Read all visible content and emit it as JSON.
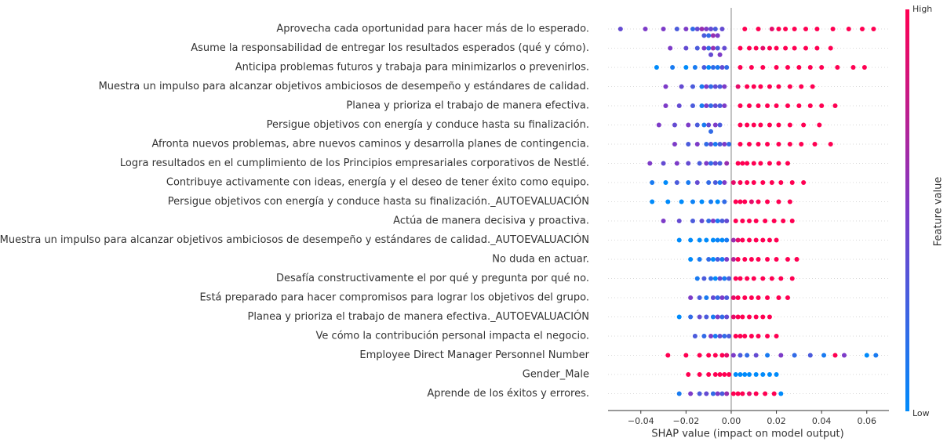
{
  "chart_data": {
    "type": "beeswarm",
    "xlabel": "SHAP value (impact on model output)",
    "xlim": [
      -0.0545,
      0.0698
    ],
    "xticks": [
      {
        "value": -0.04,
        "label": "−0.04"
      },
      {
        "value": -0.02,
        "label": "−0.02"
      },
      {
        "value": 0,
        "label": "0.00"
      },
      0.02,
      0.04,
      0.06
    ],
    "colorbar": {
      "label": "Feature value",
      "high": "High",
      "low": "Low",
      "colors": [
        "#008bfb",
        "#7d3bc8",
        "#ff0052"
      ]
    },
    "series": [
      {
        "name": "Aprovecha cada oportunidad para hacer más de lo esperado.",
        "values": [
          -0.049,
          -0.038,
          -0.03,
          -0.024,
          -0.02,
          -0.017,
          -0.015,
          -0.013,
          -0.012,
          -0.011,
          -0.01,
          -0.009,
          -0.008,
          -0.007,
          -0.006,
          -0.004,
          0.006,
          0.012,
          0.018,
          0.021,
          0.024,
          0.028,
          0.033,
          0.038,
          0.045,
          0.052,
          0.058,
          0.063
        ],
        "feature_values": [
          0.4,
          0.5,
          0.5,
          0.3,
          0.5,
          0.2,
          0.4,
          0.6,
          0.3,
          0.5,
          0.2,
          0.4,
          0.6,
          0.3,
          0.5,
          0.4,
          1,
          1,
          0.9,
          1,
          1,
          1,
          1,
          1,
          1,
          1,
          1,
          1
        ]
      },
      {
        "name": "Asume la responsabilidad de entregar los resultados esperados (qué y cómo).",
        "values": [
          -0.027,
          -0.02,
          -0.015,
          -0.012,
          -0.01,
          -0.009,
          -0.008,
          -0.006,
          -0.005,
          -0.003,
          0.004,
          0.008,
          0.011,
          0.014,
          0.017,
          0.02,
          0.024,
          0.028,
          0.033,
          0.038,
          0.044
        ],
        "feature_values": [
          0.5,
          0.4,
          0.3,
          0.5,
          0.2,
          0.4,
          0.6,
          0.3,
          0.5,
          0.4,
          1,
          1,
          1,
          0.9,
          1,
          1,
          1,
          1,
          1,
          1,
          1
        ]
      },
      {
        "name": "Anticipa problemas futuros y trabaja para minimizarlos o prevenirlos.",
        "values": [
          -0.033,
          -0.026,
          -0.02,
          -0.016,
          -0.012,
          -0.01,
          -0.008,
          -0.006,
          -0.004,
          -0.002,
          0.004,
          0.009,
          0.014,
          0.02,
          0.025,
          0.03,
          0.035,
          0.04,
          0.047,
          0.054,
          0.059
        ],
        "feature_values": [
          0,
          0.1,
          0,
          0.1,
          0.3,
          0,
          0.2,
          0.1,
          0.4,
          0.2,
          1,
          1,
          1,
          1,
          1,
          1,
          1,
          1,
          1,
          1,
          1
        ]
      },
      {
        "name": "Muestra un impulso para alcanzar objetivos ambiciosos de desempeño y estándares de calidad.",
        "values": [
          -0.029,
          -0.022,
          -0.017,
          -0.013,
          -0.011,
          -0.009,
          -0.007,
          -0.005,
          -0.003,
          0.003,
          0.007,
          0.01,
          0.013,
          0.017,
          0.021,
          0.026,
          0.031,
          0.036
        ],
        "feature_values": [
          0.5,
          0.4,
          0.3,
          0.1,
          0.5,
          0.2,
          0.4,
          0.3,
          0.5,
          0.9,
          1,
          1,
          1,
          1,
          1,
          1,
          1,
          1
        ]
      },
      {
        "name": "Planea y prioriza el trabajo de manera efectiva.",
        "values": [
          -0.029,
          -0.023,
          -0.017,
          -0.013,
          -0.011,
          -0.009,
          -0.007,
          -0.005,
          -0.003,
          0.004,
          0.008,
          0.012,
          0.016,
          0.02,
          0.025,
          0.03,
          0.035,
          0.04,
          0.046
        ],
        "feature_values": [
          0.5,
          0.4,
          0.3,
          0.1,
          0.5,
          0.2,
          0.4,
          0.3,
          0.5,
          1,
          1,
          1,
          1,
          1,
          1,
          1,
          1,
          1,
          1
        ]
      },
      {
        "name": "Persigue objetivos con energía y conduce hasta su finalización.",
        "values": [
          -0.032,
          -0.025,
          -0.019,
          -0.015,
          -0.012,
          -0.01,
          -0.009,
          -0.007,
          -0.005,
          0.004,
          0.007,
          0.01,
          0.013,
          0.017,
          0.021,
          0.026,
          0.032,
          0.039
        ],
        "feature_values": [
          0.5,
          0.4,
          0.5,
          0.3,
          0.1,
          0.4,
          0.2,
          0.5,
          0.3,
          1,
          1,
          1,
          1,
          1,
          1,
          1,
          1,
          1
        ]
      },
      {
        "name": "Afronta nuevos problemas, abre nuevos caminos y desarrolla planes de contingencia.",
        "values": [
          -0.025,
          -0.019,
          -0.015,
          -0.011,
          -0.009,
          -0.007,
          -0.005,
          -0.003,
          -0.001,
          0.004,
          0.008,
          0.012,
          0.016,
          0.021,
          0.026,
          0.031,
          0.037,
          0.044
        ],
        "feature_values": [
          0.5,
          0.3,
          0.5,
          0.2,
          0.4,
          0.1,
          0.3,
          0.5,
          0.2,
          1,
          1,
          1,
          1,
          1,
          1,
          1,
          1,
          1
        ]
      },
      {
        "name": "Logra resultados en el cumplimiento de los Principios empresariales corporativos de Nestlé.",
        "values": [
          -0.036,
          -0.03,
          -0.024,
          -0.019,
          -0.014,
          -0.011,
          -0.009,
          -0.007,
          -0.005,
          -0.002,
          0.003,
          0.005,
          0.007,
          0.01,
          0.013,
          0.017,
          0.021,
          0.025
        ],
        "feature_values": [
          0.5,
          0.4,
          0.5,
          0.4,
          0.3,
          0.5,
          0.2,
          0.4,
          0.3,
          0.6,
          1,
          1,
          1,
          1,
          1,
          1,
          1,
          1
        ]
      },
      {
        "name": "Contribuye activamente con ideas, energía y el deseo de tener éxito como equipo.",
        "values": [
          -0.035,
          -0.029,
          -0.024,
          -0.019,
          -0.015,
          -0.01,
          -0.007,
          -0.005,
          -0.003,
          0.001,
          0.004,
          0.007,
          0.01,
          0.014,
          0.018,
          0.022,
          0.027,
          0.032
        ],
        "feature_values": [
          0.1,
          0,
          0.3,
          0.1,
          0.4,
          0.2,
          0.3,
          0.1,
          0.5,
          0.9,
          1,
          1,
          1,
          1,
          1,
          1,
          1,
          1
        ]
      },
      {
        "name": "Persigue objetivos con energía y conduce hasta su finalización._AUTOEVALUACIÓN",
        "values": [
          -0.035,
          -0.028,
          -0.022,
          -0.017,
          -0.013,
          -0.009,
          -0.006,
          -0.003,
          0.002,
          0.004,
          0.006,
          0.009,
          0.012,
          0.016,
          0.021,
          0.026
        ],
        "feature_values": [
          0,
          0,
          0,
          0.05,
          0,
          0.1,
          0,
          0.2,
          1,
          1,
          1,
          0.9,
          1,
          1,
          1,
          1
        ]
      },
      {
        "name": "Actúa de manera decisiva y proactiva.",
        "values": [
          -0.03,
          -0.023,
          -0.017,
          -0.013,
          -0.01,
          -0.008,
          -0.006,
          -0.004,
          -0.002,
          0.002,
          0.005,
          0.008,
          0.011,
          0.015,
          0.019,
          0.023,
          0.027
        ],
        "feature_values": [
          0.5,
          0.4,
          0.3,
          0.4,
          0.2,
          0.5,
          0.1,
          0.3,
          0.4,
          1,
          1,
          1,
          1,
          1,
          1,
          1,
          1
        ]
      },
      {
        "name": "Muestra un impulso para alcanzar objetivos ambiciosos de desempeño y estándares de calidad._AUTOEVALUACIÓN",
        "values": [
          -0.023,
          -0.018,
          -0.014,
          -0.011,
          -0.008,
          -0.006,
          -0.004,
          -0.002,
          0.001,
          0.003,
          0.005,
          0.008,
          0.011,
          0.014,
          0.017,
          0.02
        ],
        "feature_values": [
          0,
          0,
          0,
          0,
          0,
          0.05,
          0,
          0.1,
          0.6,
          0.9,
          1,
          1,
          1,
          1,
          1,
          1
        ]
      },
      {
        "name": "No duda en actuar.",
        "values": [
          -0.018,
          -0.014,
          -0.01,
          -0.008,
          -0.006,
          -0.004,
          -0.002,
          0.001,
          0.003,
          0.006,
          0.009,
          0.012,
          0.016,
          0.02,
          0.025,
          0.029
        ],
        "feature_values": [
          0,
          0.1,
          0.2,
          0,
          0.3,
          0.1,
          0.5,
          0.7,
          1,
          1,
          1,
          1,
          1,
          1,
          1,
          1
        ]
      },
      {
        "name": "Desafía constructivamente el por qué y pregunta por qué no.",
        "values": [
          -0.015,
          -0.012,
          -0.009,
          -0.007,
          -0.005,
          -0.003,
          -0.001,
          0.002,
          0.004,
          0.007,
          0.01,
          0.014,
          0.018,
          0.022,
          0.027
        ],
        "feature_values": [
          0.1,
          0.3,
          0.2,
          0,
          0.4,
          0.1,
          0.3,
          1,
          1,
          1,
          1,
          1,
          1,
          1,
          1
        ]
      },
      {
        "name": "Está preparado para hacer compromisos para lograr los objetivos del grupo.",
        "values": [
          -0.018,
          -0.014,
          -0.011,
          -0.008,
          -0.006,
          -0.004,
          -0.002,
          0.001,
          0.003,
          0.006,
          0.009,
          0.012,
          0.016,
          0.021,
          0.025
        ],
        "feature_values": [
          0.5,
          0.3,
          0.1,
          0.4,
          0.2,
          0.5,
          0.3,
          0.9,
          1,
          1,
          1,
          1,
          1,
          1,
          1
        ]
      },
      {
        "name": "Planea y prioriza el trabajo de manera efectiva._AUTOEVALUACIÓN",
        "values": [
          -0.023,
          -0.018,
          -0.014,
          -0.011,
          -0.008,
          -0.006,
          -0.004,
          -0.002,
          0.001,
          0.003,
          0.005,
          0.008,
          0.011,
          0.014,
          0.017
        ],
        "feature_values": [
          0,
          0.2,
          0.4,
          0.3,
          0.1,
          0.5,
          0.2,
          0.4,
          0.9,
          1,
          1,
          1,
          1,
          1,
          1
        ]
      },
      {
        "name": "Ve cómo la contribución personal impacta el negocio.",
        "values": [
          -0.016,
          -0.012,
          -0.009,
          -0.007,
          -0.005,
          -0.003,
          -0.001,
          0.002,
          0.004,
          0.006,
          0.009,
          0.012,
          0.016,
          0.02
        ],
        "feature_values": [
          0.3,
          0.2,
          0.5,
          0.1,
          0.4,
          0.2,
          0.3,
          1,
          1,
          1,
          1,
          1,
          1,
          1
        ]
      },
      {
        "name": "Employee Direct Manager Personnel Number",
        "values": [
          -0.028,
          -0.02,
          -0.014,
          -0.01,
          -0.007,
          -0.004,
          -0.002,
          0.001,
          0.004,
          0.007,
          0.011,
          0.016,
          0.022,
          0.028,
          0.035,
          0.041,
          0.046,
          0.05,
          0.06,
          0.064
        ],
        "feature_values": [
          1,
          1,
          1,
          1,
          1,
          1,
          0.9,
          0.5,
          0.3,
          0.2,
          0.4,
          0.1,
          0.5,
          0.2,
          0.3,
          0.1,
          1,
          0.5,
          0,
          0.1
        ]
      },
      {
        "name": "Gender_Male",
        "values": [
          -0.019,
          -0.014,
          -0.01,
          -0.007,
          -0.005,
          -0.003,
          -0.001,
          0.002,
          0.004,
          0.006,
          0.008,
          0.011,
          0.014,
          0.017,
          0.02
        ],
        "feature_values": [
          1,
          1,
          1,
          1,
          1,
          1,
          1,
          0,
          0,
          0,
          0,
          0,
          0,
          0,
          0
        ]
      },
      {
        "name": "Aprende de los éxitos y errores.",
        "values": [
          -0.023,
          -0.018,
          -0.014,
          -0.011,
          -0.008,
          -0.006,
          -0.004,
          -0.002,
          0.001,
          0.003,
          0.005,
          0.008,
          0.011,
          0.015,
          0.019,
          0.022
        ],
        "feature_values": [
          0.1,
          0.5,
          0.3,
          0.4,
          0.2,
          0.5,
          0.3,
          0.6,
          1,
          1,
          1,
          0.9,
          1,
          1,
          1,
          0
        ]
      }
    ]
  }
}
